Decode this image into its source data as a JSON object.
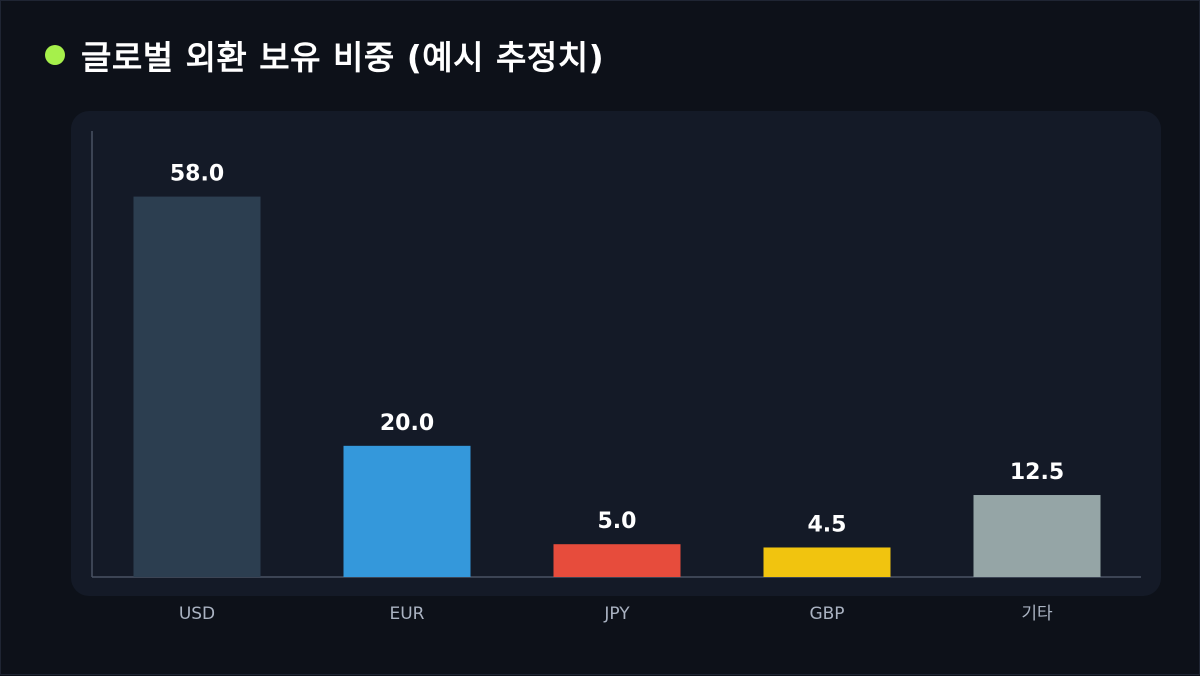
{
  "header": {
    "title": "글로벌 외환 보유 비중 (예시 추정치)",
    "dot_color": "#a6f04b"
  },
  "colors": {
    "background": "#0d1119",
    "panel": "#141a27",
    "axis": "#4a5363"
  },
  "chart_data": {
    "type": "bar",
    "title": "글로벌 외환 보유 비중 (예시 추정치)",
    "xlabel": "",
    "ylabel": "",
    "categories": [
      "USD",
      "EUR",
      "JPY",
      "GBP",
      "기타"
    ],
    "values": [
      58.0,
      20.0,
      5.0,
      4.5,
      12.5
    ],
    "value_labels": [
      "58.0",
      "20.0",
      "5.0",
      "4.5",
      "12.5"
    ],
    "bar_colors": [
      "#2c3e50",
      "#3498db",
      "#e74c3c",
      "#f1c40f",
      "#95a5a6"
    ],
    "ylim": [
      0,
      68
    ],
    "grid": false,
    "legend": "none"
  }
}
